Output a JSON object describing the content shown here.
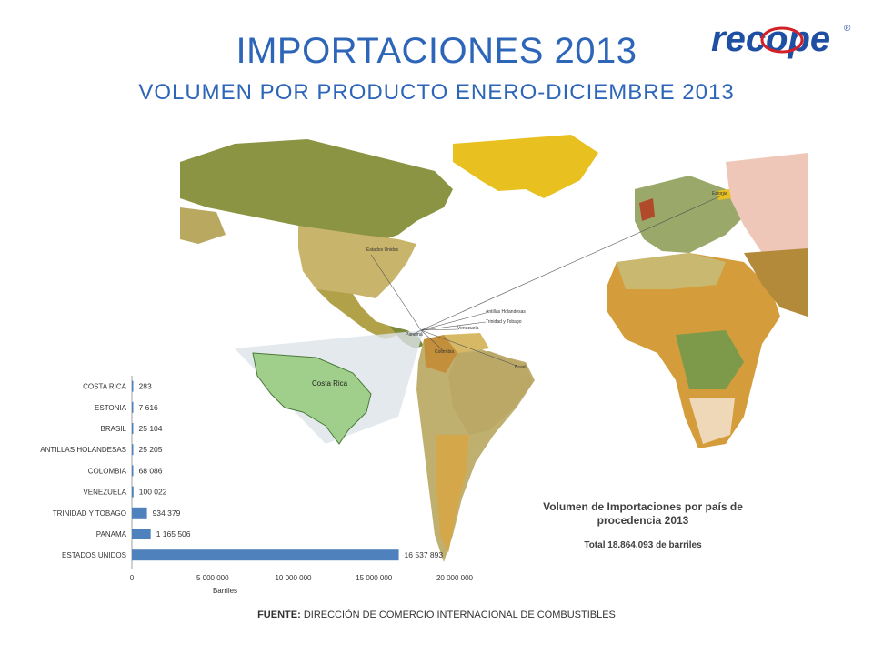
{
  "header": {
    "title": "IMPORTACIONES 2013",
    "subtitle": "VOLUMEN POR PRODUCTO ENERO-DICIEMBRE 2013",
    "logo_text": "recope",
    "logo_mark": "®"
  },
  "map": {
    "labels": [
      "Estados Unidos",
      "Antillas Holandesas",
      "Trinidad y Tobago",
      "Venezuela",
      "Panamá",
      "Colombia",
      "Brasil",
      "Estonia",
      "Costa Rica"
    ]
  },
  "info": {
    "heading": "Volumen de Importaciones por país de procedencia 2013",
    "total": "Total  18.864.093 de barriles"
  },
  "source": {
    "label": "FUENTE:",
    "text": "DIRECCIÓN DE COMERCIO INTERNACIONAL DE COMBUSTIBLES"
  },
  "colors": {
    "title": "#2d66b8",
    "bar": "#4f81bd"
  },
  "chart_data": {
    "type": "bar",
    "orientation": "horizontal",
    "categories": [
      "COSTA RICA",
      "ESTONIA",
      "BRASIL",
      "ANTILLAS HOLANDESAS",
      "COLOMBIA",
      "VENEZUELA",
      "TRINIDAD Y TOBAGO",
      "PANAMA",
      "ESTADOS UNIDOS"
    ],
    "values": [
      283,
      7616,
      25104,
      25205,
      68086,
      100022,
      934379,
      1165506,
      16537893
    ],
    "value_labels": [
      "283",
      "7 616",
      "25 104",
      "25 205",
      "68 086",
      "100 022",
      "934 379",
      "1 165 506",
      "16 537 893"
    ],
    "xlabel": "Barriles",
    "xlim": [
      0,
      20000000
    ],
    "xticks": [
      0,
      5000000,
      10000000,
      15000000,
      20000000
    ],
    "xtick_labels": [
      "0",
      "5 000 000",
      "10 000 000",
      "15 000 000",
      "20 000 000"
    ],
    "grid": false
  }
}
